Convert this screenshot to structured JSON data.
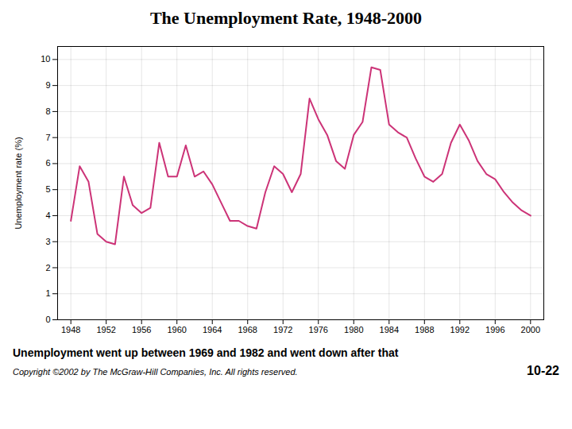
{
  "chart_data": {
    "type": "line",
    "title": "The Unemployment Rate, 1948-2000",
    "subtitle": "Unemployment went up between 1969 and 1982 and went down after that",
    "annotations": [
      "Copyright ©2002 by The McGraw-Hill Companies, Inc.  All rights reserved.",
      "10-22"
    ],
    "ylabel": "Unemployment rate (%)",
    "x": [
      1948,
      1949,
      1950,
      1951,
      1952,
      1953,
      1954,
      1955,
      1956,
      1957,
      1958,
      1959,
      1960,
      1961,
      1962,
      1963,
      1964,
      1965,
      1966,
      1967,
      1968,
      1969,
      1970,
      1971,
      1972,
      1973,
      1974,
      1975,
      1976,
      1977,
      1978,
      1979,
      1980,
      1981,
      1982,
      1983,
      1984,
      1985,
      1986,
      1987,
      1988,
      1989,
      1990,
      1991,
      1992,
      1993,
      1994,
      1995,
      1996,
      1997,
      1998,
      1999,
      2000
    ],
    "values": [
      3.8,
      5.9,
      5.3,
      3.3,
      3.0,
      2.9,
      5.5,
      4.4,
      4.1,
      4.3,
      6.8,
      5.5,
      5.5,
      6.7,
      5.5,
      5.7,
      5.2,
      4.5,
      3.8,
      3.8,
      3.6,
      3.5,
      4.9,
      5.9,
      5.6,
      4.9,
      5.6,
      8.5,
      7.7,
      7.1,
      6.1,
      5.8,
      7.1,
      7.6,
      9.7,
      9.6,
      7.5,
      7.2,
      7.0,
      6.2,
      5.5,
      5.3,
      5.6,
      6.8,
      7.5,
      6.9,
      6.1,
      5.6,
      5.4,
      4.9,
      4.5,
      4.2,
      4.0
    ],
    "color": "#cc3377",
    "xlim": [
      1946.5,
      2001.5
    ],
    "xticks": [
      1948,
      1952,
      1956,
      1960,
      1964,
      1968,
      1972,
      1976,
      1980,
      1984,
      1988,
      1992,
      1996,
      2000
    ],
    "ylim": [
      0,
      10.5
    ],
    "yticks": [
      0,
      1,
      2,
      3,
      4,
      5,
      6,
      7,
      8,
      9,
      10
    ],
    "grid": true
  }
}
